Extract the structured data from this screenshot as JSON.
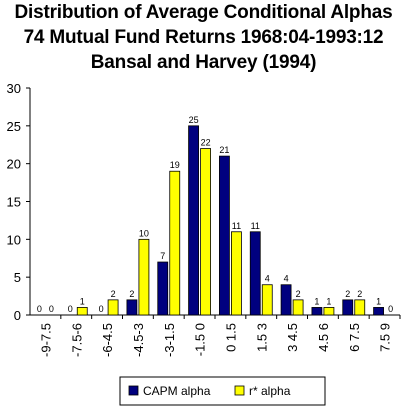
{
  "chart_data": {
    "type": "bar",
    "title_lines": [
      "Distribution of Average Conditional Alphas",
      "74 Mutual Fund Returns 1968:04-1993:12",
      "Bansal and Harvey (1994)"
    ],
    "categories": [
      "-9-7.5",
      "-7.5-6",
      "-6-4.5",
      "-4.5-3",
      "-3-1.5",
      "-1.5 0",
      "0 1.5",
      "1.5 3",
      "3 4.5",
      "4.5 6",
      "6 7.5",
      "7.5 9"
    ],
    "series": [
      {
        "name": "CAPM alpha",
        "color": "#00007f",
        "values": [
          0,
          0,
          0,
          2,
          7,
          25,
          21,
          11,
          4,
          1,
          2,
          1
        ]
      },
      {
        "name": "r* alpha",
        "color": "#ffff00",
        "values": [
          0,
          1,
          2,
          10,
          19,
          22,
          11,
          4,
          2,
          1,
          2,
          0
        ]
      }
    ],
    "ylim": [
      0,
      30
    ],
    "yticks": [
      0,
      5,
      10,
      15,
      20,
      25,
      30
    ],
    "grid": false,
    "legend_position": "bottom",
    "bar_outline_color": "#000000"
  }
}
